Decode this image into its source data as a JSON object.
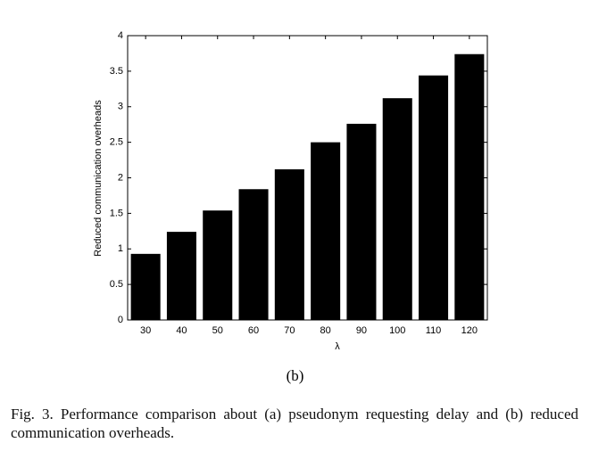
{
  "chart_data": {
    "type": "bar",
    "categories": [
      "30",
      "40",
      "50",
      "60",
      "70",
      "80",
      "90",
      "100",
      "110",
      "120"
    ],
    "values": [
      0.93,
      1.24,
      1.54,
      1.84,
      2.12,
      2.5,
      2.76,
      3.12,
      3.44,
      3.74
    ],
    "color": "#000000",
    "xlabel": "λ",
    "ylabel": "Reduced communication overheads",
    "ylim": [
      0,
      4
    ],
    "yticks": [
      0,
      0.5,
      1,
      1.5,
      2,
      2.5,
      3,
      3.5,
      4
    ],
    "grid": false
  },
  "panel_label": "(b)",
  "caption": "Fig. 3. Performance comparison about (a) pseudonym requesting delay and (b) reduced communication overheads."
}
